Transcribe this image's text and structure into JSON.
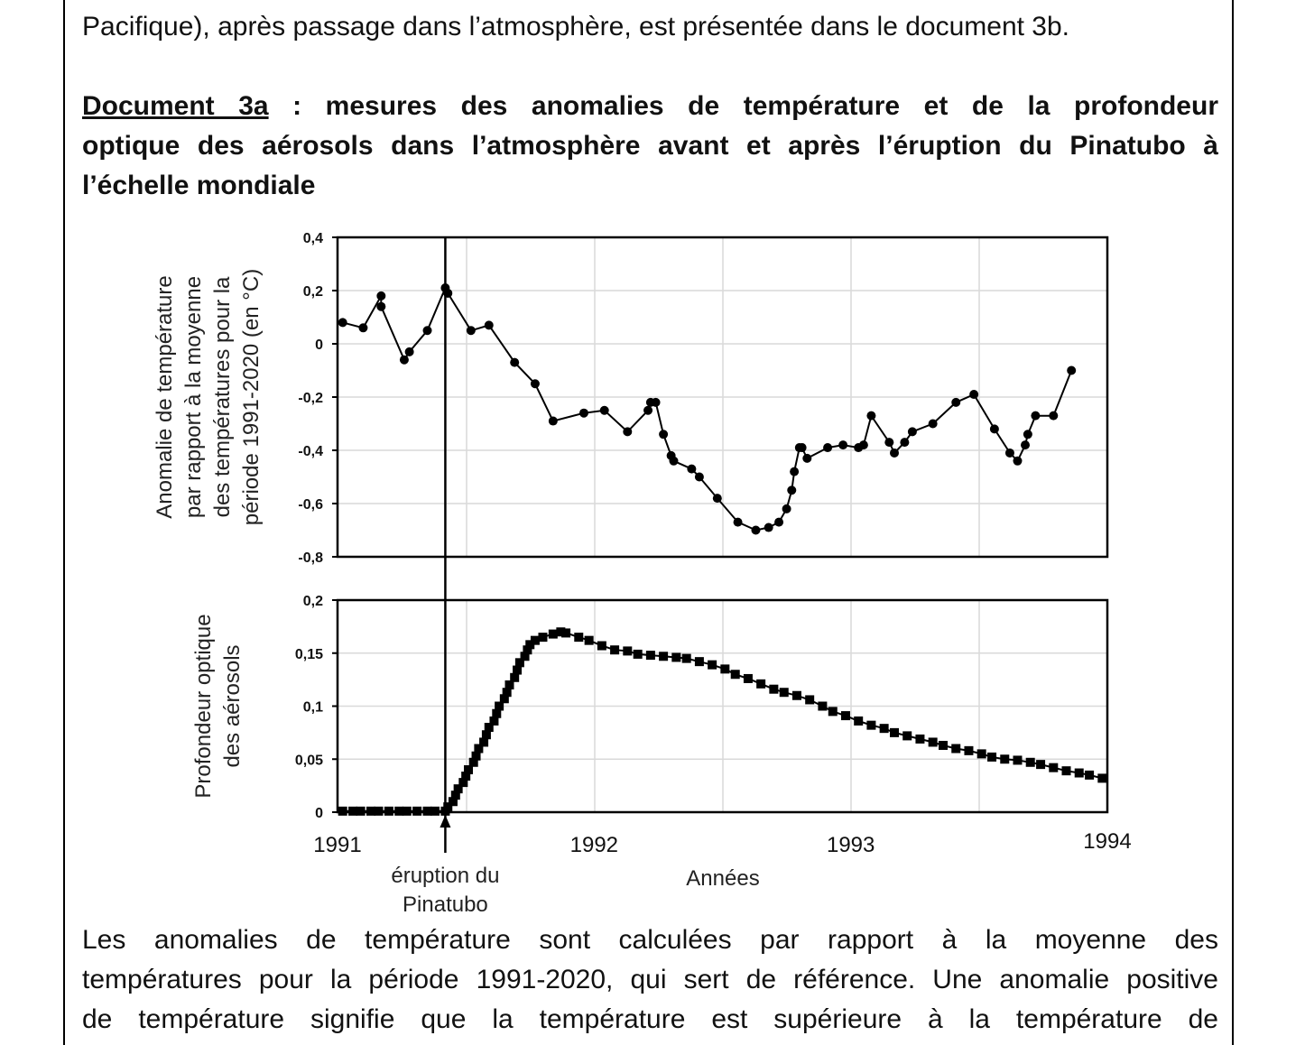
{
  "text": {
    "intro_line2": "Pacifique), après passage dans l’atmosphère, est présentée dans le document 3b.",
    "doc_ref": "Document 3a",
    "doc_title_line1": " : mesures des anomalies de température et de la profondeur",
    "doc_title_line2": "optique des aérosols dans l’atmosphère avant et après l’éruption du Pinatubo à",
    "doc_title_line3": "l’échelle mondiale",
    "body_line1": "Les anomalies de température sont calculées par rapport à la moyenne des",
    "body_line2": "températures pour la période 1991-2020, qui sert de référence. Une anomalie positive",
    "body_line3": "de température signifie que la température est supérieure à la température de"
  },
  "chart_data": [
    {
      "type": "line",
      "ylabel_lines": [
        "Anomalie de température",
        "par rapport à la moyenne",
        "des températures pour la",
        "période 1991-2020 (en °C)"
      ],
      "ylim": [
        -0.8,
        0.4
      ],
      "ytick_labels": [
        "0,4",
        "0,2",
        "0",
        "-0,2",
        "-0,4",
        "-0,6",
        "-0,8"
      ],
      "ytick_values": [
        0.4,
        0.2,
        0,
        -0.2,
        -0.4,
        -0.6,
        -0.8
      ],
      "xlim": [
        1991,
        1994
      ],
      "grid": true,
      "marker": "circle",
      "x": [
        1991.02,
        1991.1,
        1991.17,
        1991.17,
        1991.26,
        1991.28,
        1991.35,
        1991.42,
        1991.43,
        1991.52,
        1991.59,
        1991.69,
        1991.77,
        1991.84,
        1991.96,
        1992.04,
        1992.13,
        1992.21,
        1992.22,
        1992.24,
        1992.27,
        1992.3,
        1992.31,
        1992.38,
        1992.41,
        1992.48,
        1992.56,
        1992.63,
        1992.68,
        1992.72,
        1992.75,
        1992.77,
        1992.78,
        1992.8,
        1992.81,
        1992.83,
        1992.91,
        1992.97,
        1993.03,
        1993.05,
        1993.08,
        1993.15,
        1993.17,
        1993.21,
        1993.24,
        1993.32,
        1993.41,
        1993.48,
        1993.56,
        1993.62,
        1993.65,
        1993.68,
        1993.69,
        1993.72,
        1993.79,
        1993.86
      ],
      "y": [
        0.08,
        0.06,
        0.18,
        0.14,
        -0.06,
        -0.03,
        0.05,
        0.21,
        0.19,
        0.05,
        0.07,
        -0.07,
        -0.15,
        -0.29,
        -0.26,
        -0.25,
        -0.33,
        -0.25,
        -0.22,
        -0.22,
        -0.34,
        -0.42,
        -0.44,
        -0.47,
        -0.5,
        -0.58,
        -0.67,
        -0.7,
        -0.69,
        -0.67,
        -0.62,
        -0.55,
        -0.48,
        -0.39,
        -0.39,
        -0.43,
        -0.39,
        -0.38,
        -0.39,
        -0.38,
        -0.27,
        -0.37,
        -0.41,
        -0.37,
        -0.33,
        -0.3,
        -0.22,
        -0.19,
        -0.32,
        -0.41,
        -0.44,
        -0.38,
        -0.34,
        -0.27,
        -0.27,
        -0.1
      ]
    },
    {
      "type": "line",
      "ylabel_lines": [
        "Profondeur optique",
        "des aérosols"
      ],
      "ylim": [
        0,
        0.2
      ],
      "ytick_labels": [
        "0,2",
        "0,15",
        "0,1",
        "0,05",
        "0"
      ],
      "ytick_values": [
        0.2,
        0.15,
        0.1,
        0.05,
        0
      ],
      "xlim": [
        1991,
        1994
      ],
      "xtick_labels": [
        "1991",
        "1992",
        "1993",
        "1994"
      ],
      "xtick_values": [
        1991,
        1992,
        1993,
        1994
      ],
      "xlabel": "Années",
      "grid": true,
      "marker": "square",
      "x": [
        1991.02,
        1991.06,
        1991.09,
        1991.13,
        1991.16,
        1991.2,
        1991.24,
        1991.27,
        1991.31,
        1991.35,
        1991.38,
        1991.42,
        1991.43,
        1991.45,
        1991.46,
        1991.47,
        1991.49,
        1991.5,
        1991.51,
        1991.53,
        1991.54,
        1991.55,
        1991.57,
        1991.58,
        1991.59,
        1991.61,
        1991.62,
        1991.63,
        1991.65,
        1991.66,
        1991.67,
        1991.69,
        1991.7,
        1991.71,
        1991.73,
        1991.74,
        1991.75,
        1991.77,
        1991.8,
        1991.84,
        1991.87,
        1991.89,
        1991.94,
        1991.98,
        1992.03,
        1992.08,
        1992.13,
        1992.17,
        1992.22,
        1992.27,
        1992.32,
        1992.36,
        1992.41,
        1992.46,
        1992.51,
        1992.55,
        1992.6,
        1992.65,
        1992.7,
        1992.74,
        1992.79,
        1992.84,
        1992.89,
        1992.93,
        1992.98,
        1993.03,
        1993.08,
        1993.13,
        1993.17,
        1993.22,
        1993.27,
        1993.32,
        1993.36,
        1993.41,
        1993.46,
        1993.51,
        1993.55,
        1993.6,
        1993.65,
        1993.7,
        1993.74,
        1993.79,
        1993.84,
        1993.89,
        1993.93,
        1993.98
      ],
      "y": [
        0.001,
        0.001,
        0.001,
        0.001,
        0.001,
        0.001,
        0.001,
        0.001,
        0.001,
        0.001,
        0.001,
        0.001,
        0.005,
        0.01,
        0.016,
        0.022,
        0.028,
        0.034,
        0.04,
        0.047,
        0.053,
        0.06,
        0.066,
        0.073,
        0.08,
        0.086,
        0.093,
        0.1,
        0.107,
        0.113,
        0.12,
        0.127,
        0.134,
        0.141,
        0.147,
        0.153,
        0.158,
        0.162,
        0.165,
        0.168,
        0.17,
        0.169,
        0.165,
        0.162,
        0.157,
        0.153,
        0.152,
        0.149,
        0.148,
        0.147,
        0.146,
        0.145,
        0.142,
        0.139,
        0.135,
        0.13,
        0.126,
        0.121,
        0.116,
        0.113,
        0.11,
        0.106,
        0.1,
        0.095,
        0.091,
        0.086,
        0.082,
        0.079,
        0.075,
        0.072,
        0.069,
        0.066,
        0.063,
        0.06,
        0.058,
        0.055,
        0.052,
        0.05,
        0.049,
        0.047,
        0.045,
        0.042,
        0.039,
        0.037,
        0.035,
        0.032
      ]
    }
  ],
  "annotation": {
    "eruption_x": 1991.42,
    "eruption_label_lines": [
      "éruption du",
      "Pinatubo"
    ]
  }
}
